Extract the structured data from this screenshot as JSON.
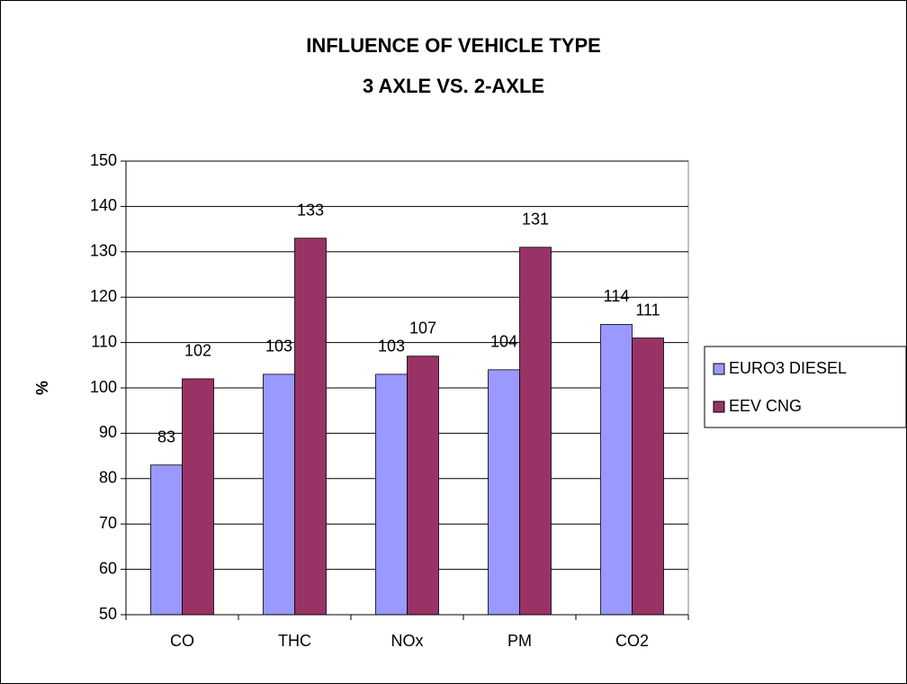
{
  "chart_data": {
    "type": "bar",
    "title": "INFLUENCE OF VEHICLE TYPE",
    "subtitle": "3 AXLE VS. 2-AXLE",
    "y_label": "%",
    "categories": [
      "CO",
      "THC",
      "NOx",
      "PM",
      "CO2"
    ],
    "series": [
      {
        "name": "EURO3 DIESEL",
        "color": "#9999ff",
        "values": [
          83,
          103,
          103,
          104,
          114
        ]
      },
      {
        "name": "EEV CNG",
        "color": "#993366",
        "values": [
          102,
          133,
          107,
          131,
          111
        ]
      }
    ],
    "ylim": [
      50,
      150
    ],
    "yticks": [
      50,
      60,
      70,
      80,
      90,
      100,
      110,
      120,
      130,
      140,
      150
    ],
    "grid": true,
    "legend": "right"
  }
}
